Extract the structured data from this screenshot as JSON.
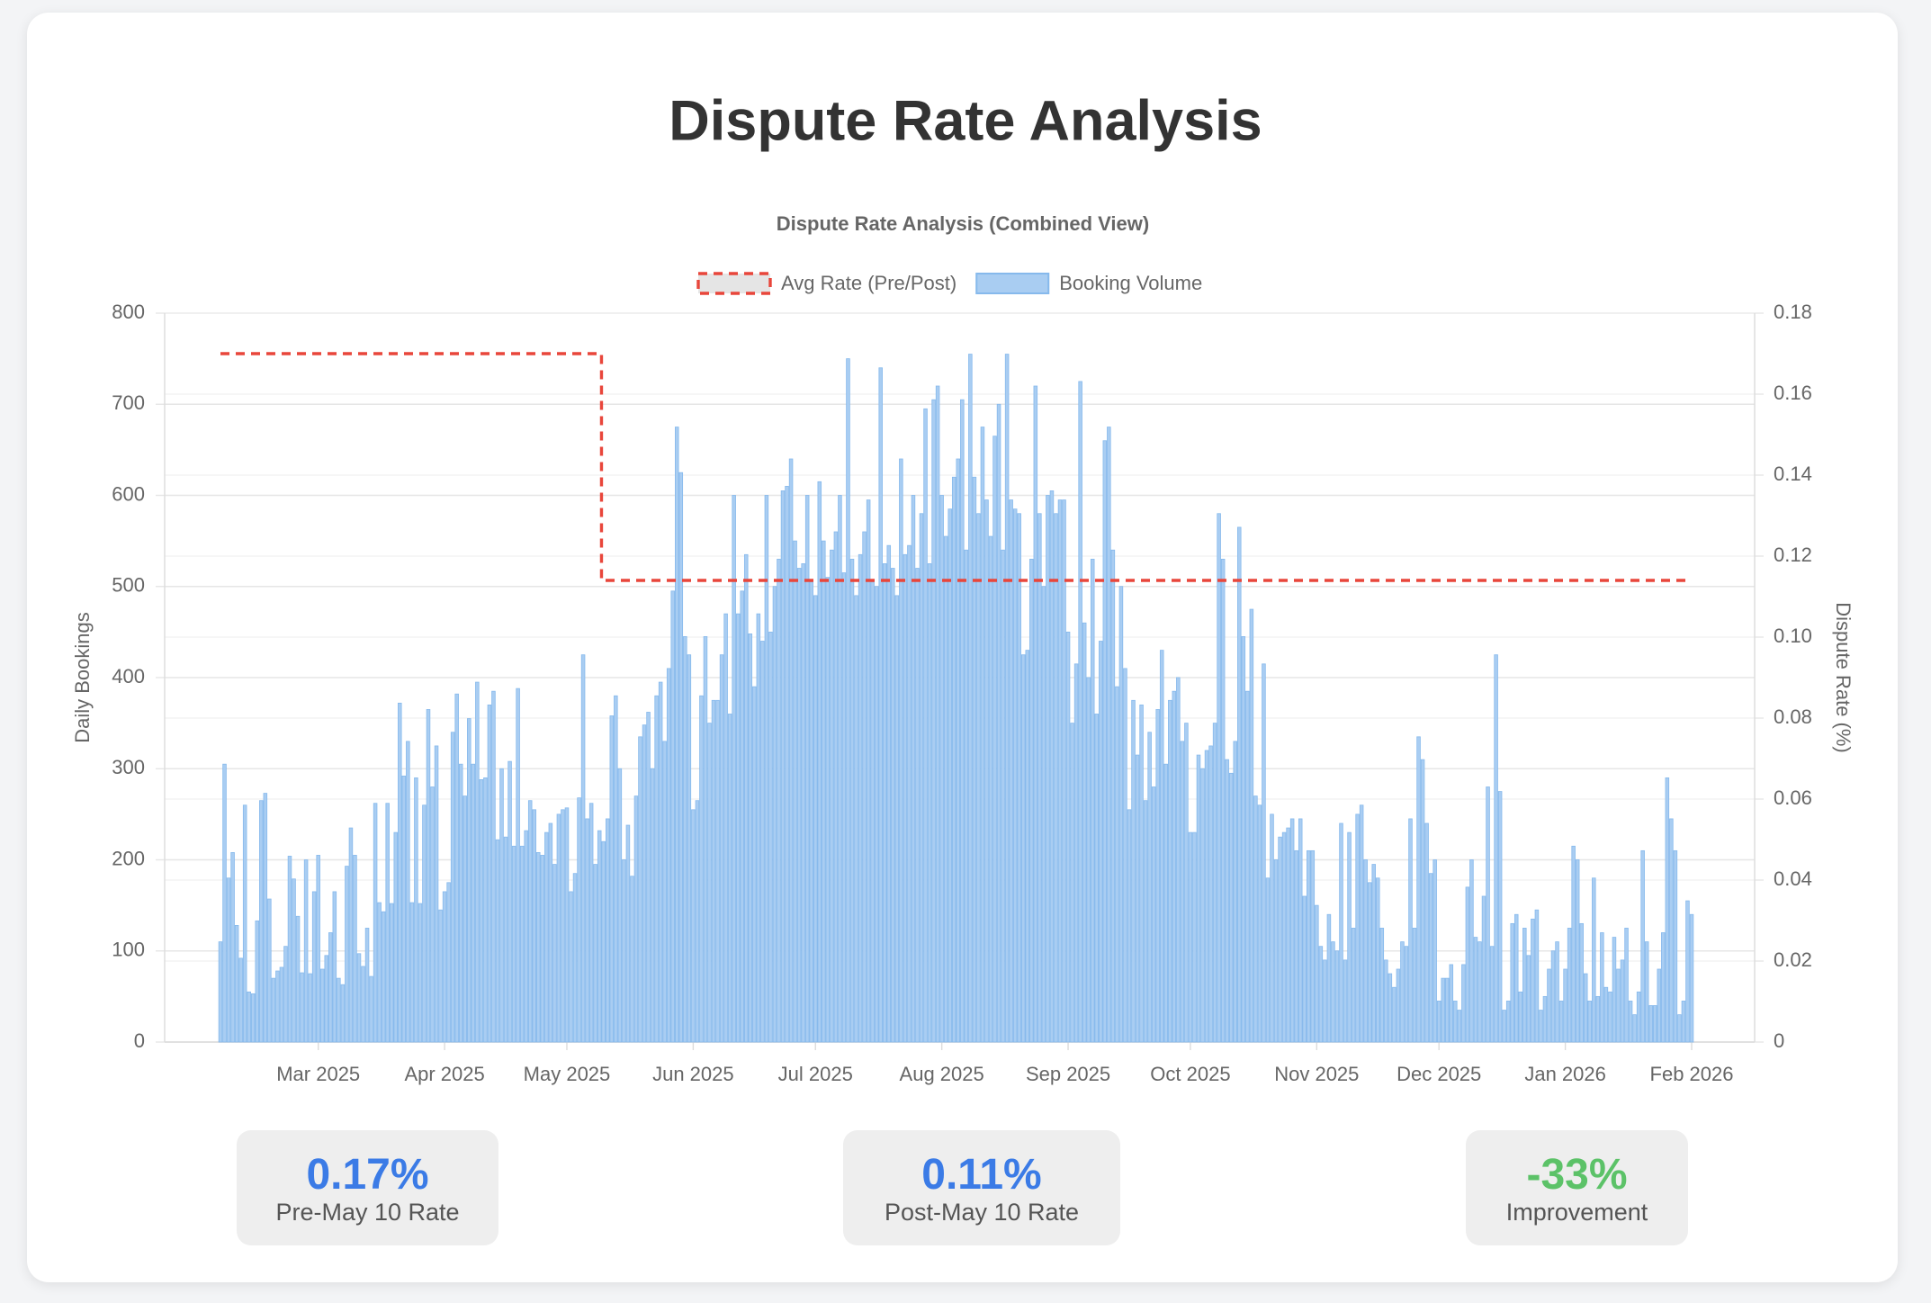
{
  "header": {
    "title": "Dispute Rate Analysis"
  },
  "chart_data": {
    "type": "bar",
    "title": "Dispute Rate Analysis (Combined View)",
    "ylabel": "Daily Bookings",
    "y2label": "Dispute Rate (%)",
    "categories": [
      null,
      null,
      null,
      null,
      null,
      null,
      null,
      null,
      null,
      null,
      null,
      null,
      null,
      null,
      null,
      null,
      null,
      null,
      null,
      null,
      null,
      null,
      null,
      null,
      "Mar 2025",
      null,
      null,
      null,
      null,
      null,
      null,
      null,
      null,
      null,
      null,
      null,
      null,
      null,
      null,
      null,
      null,
      null,
      null,
      null,
      null,
      null,
      null,
      null,
      null,
      null,
      null,
      null,
      null,
      null,
      null,
      "Apr 2025",
      null,
      null,
      null,
      null,
      null,
      null,
      null,
      null,
      null,
      null,
      null,
      null,
      null,
      null,
      null,
      null,
      null,
      null,
      null,
      null,
      null,
      null,
      null,
      null,
      null,
      null,
      null,
      null,
      null,
      "May 2025",
      null,
      null,
      null,
      null,
      null,
      null,
      null,
      null,
      null,
      null,
      null,
      null,
      null,
      null,
      null,
      null,
      null,
      null,
      null,
      null,
      null,
      null,
      null,
      null,
      null,
      null,
      null,
      null,
      null,
      null,
      "Jun 2025",
      null,
      null,
      null,
      null,
      null,
      null,
      null,
      null,
      null,
      null,
      null,
      null,
      null,
      null,
      null,
      null,
      null,
      null,
      null,
      null,
      null,
      null,
      null,
      null,
      null,
      null,
      null,
      null,
      null,
      "Jul 2025",
      null,
      null,
      null,
      null,
      null,
      null,
      null,
      null,
      null,
      null,
      null,
      null,
      null,
      null,
      null,
      null,
      null,
      null,
      null,
      null,
      null,
      null,
      null,
      null,
      null,
      null,
      null,
      null,
      null,
      null,
      "Aug 2025",
      null,
      null,
      null,
      null,
      null,
      null,
      null,
      null,
      null,
      null,
      null,
      null,
      null,
      null,
      null,
      null,
      null,
      null,
      null,
      null,
      null,
      null,
      null,
      null,
      null,
      null,
      null,
      null,
      null,
      null,
      "Sep 2025",
      null,
      null,
      null,
      null,
      null,
      null,
      null,
      null,
      null,
      null,
      null,
      null,
      null,
      null,
      null,
      null,
      null,
      null,
      null,
      null,
      null,
      null,
      null,
      null,
      null,
      null,
      null,
      null,
      null,
      "Oct 2025",
      null,
      null,
      null,
      null,
      null,
      null,
      null,
      null,
      null,
      null,
      null,
      null,
      null,
      null,
      null,
      null,
      null,
      null,
      null,
      null,
      null,
      null,
      null,
      null,
      null,
      null,
      null,
      null,
      null,
      null,
      "Nov 2025",
      null,
      null,
      null,
      null,
      null,
      null,
      null,
      null,
      null,
      null,
      null,
      null,
      null,
      null,
      null,
      null,
      null,
      null,
      null,
      null,
      null,
      null,
      null,
      null,
      null,
      null,
      null,
      null,
      null,
      "Dec 2025",
      null,
      null,
      null,
      null,
      null,
      null,
      null,
      null,
      null,
      null,
      null,
      null,
      null,
      null,
      null,
      null,
      null,
      null,
      null,
      null,
      null,
      null,
      null,
      null,
      null,
      null,
      null,
      null,
      null,
      null,
      "Jan 2026",
      null,
      null,
      null,
      null,
      null,
      null,
      null,
      null,
      null,
      null,
      null,
      null,
      null,
      null,
      null,
      null,
      null,
      null,
      null,
      null,
      null,
      null,
      null,
      null,
      null,
      null,
      null,
      null,
      null,
      null,
      "Feb 2026"
    ],
    "series": [
      {
        "name": "Avg Rate (Pre/Post)",
        "type": "line",
        "color": "#e8463b",
        "axis": "y2",
        "dashed": true,
        "stepped": true,
        "values": [
          0.17,
          0.17,
          0.17,
          0.17,
          0.17,
          0.17,
          0.17,
          0.17,
          0.17,
          0.17,
          0.17,
          0.17,
          0.17,
          0.17,
          0.17,
          0.17,
          0.17,
          0.17,
          0.17,
          0.17,
          0.17,
          0.17,
          0.17,
          0.17,
          0.17,
          0.17,
          0.17,
          0.17,
          0.17,
          0.17,
          0.17,
          0.17,
          0.17,
          0.17,
          0.17,
          0.17,
          0.17,
          0.17,
          0.17,
          0.17,
          0.17,
          0.17,
          0.17,
          0.17,
          0.17,
          0.17,
          0.17,
          0.17,
          0.17,
          0.17,
          0.17,
          0.17,
          0.17,
          0.17,
          0.17,
          0.17,
          0.17,
          0.17,
          0.17,
          0.17,
          0.17,
          0.17,
          0.17,
          0.17,
          0.17,
          0.17,
          0.17,
          0.17,
          0.17,
          0.17,
          0.17,
          0.17,
          0.17,
          0.17,
          0.17,
          0.17,
          0.17,
          0.17,
          0.17,
          0.17,
          0.17,
          0.17,
          0.17,
          0.17,
          0.17,
          0.17,
          0.17,
          0.17,
          0.17,
          0.17,
          0.17,
          0.17,
          0.17,
          0.17,
          0.114,
          0.114,
          0.114,
          0.114,
          0.114,
          0.114,
          0.114,
          0.114,
          0.114,
          0.114,
          0.114,
          0.114,
          0.114,
          0.114,
          0.114,
          0.114,
          0.114,
          0.114,
          0.114,
          0.114,
          0.114,
          0.114,
          0.114,
          0.114,
          0.114,
          0.114,
          0.114,
          0.114,
          0.114,
          0.114,
          0.114,
          0.114,
          0.114,
          0.114,
          0.114,
          0.114,
          0.114,
          0.114,
          0.114,
          0.114,
          0.114,
          0.114,
          0.114,
          0.114,
          0.114,
          0.114,
          0.114,
          0.114,
          0.114,
          0.114,
          0.114,
          0.114,
          0.114,
          0.114,
          0.114,
          0.114,
          0.114,
          0.114,
          0.114,
          0.114,
          0.114,
          0.114,
          0.114,
          0.114,
          0.114,
          0.114,
          0.114,
          0.114,
          0.114,
          0.114,
          0.114,
          0.114,
          0.114,
          0.114,
          0.114,
          0.114,
          0.114,
          0.114,
          0.114,
          0.114,
          0.114,
          0.114,
          0.114,
          0.114,
          0.114,
          0.114,
          0.114,
          0.114,
          0.114,
          0.114,
          0.114,
          0.114,
          0.114,
          0.114,
          0.114,
          0.114,
          0.114,
          0.114,
          0.114,
          0.114,
          0.114,
          0.114,
          0.114,
          0.114,
          0.114,
          0.114,
          0.114,
          0.114,
          0.114,
          0.114,
          0.114,
          0.114,
          0.114,
          0.114,
          0.114,
          0.114,
          0.114,
          0.114,
          0.114,
          0.114,
          0.114,
          0.114,
          0.114,
          0.114,
          0.114,
          0.114,
          0.114,
          0.114,
          0.114,
          0.114,
          0.114,
          0.114,
          0.114,
          0.114,
          0.114,
          0.114,
          0.114,
          0.114,
          0.114,
          0.114,
          0.114,
          0.114,
          0.114,
          0.114,
          0.114,
          0.114,
          0.114,
          0.114,
          0.114,
          0.114,
          0.114,
          0.114,
          0.114,
          0.114,
          0.114,
          0.114,
          0.114,
          0.114,
          0.114,
          0.114,
          0.114,
          0.114,
          0.114,
          0.114,
          0.114,
          0.114,
          0.114,
          0.114,
          0.114,
          0.114,
          0.114,
          0.114,
          0.114,
          0.114,
          0.114,
          0.114,
          0.114,
          0.114,
          0.114,
          0.114,
          0.114,
          0.114,
          0.114,
          0.114,
          0.114,
          0.114,
          0.114,
          0.114,
          0.114,
          0.114,
          0.114,
          0.114,
          0.114,
          0.114,
          0.114,
          0.114,
          0.114,
          0.114,
          0.114,
          0.114,
          0.114,
          0.114,
          0.114,
          0.114,
          0.114,
          0.114,
          0.114,
          0.114,
          0.114,
          0.114,
          0.114,
          0.114,
          0.114,
          0.114,
          0.114,
          0.114,
          0.114,
          0.114,
          0.114,
          0.114,
          0.114,
          0.114,
          0.114,
          0.114,
          0.114,
          0.114,
          0.114,
          0.114,
          0.114,
          0.114,
          0.114,
          0.114,
          0.114,
          0.114,
          0.114,
          0.114,
          0.114,
          0.114,
          0.114,
          0.114,
          0.114,
          0.114,
          0.114,
          0.114,
          0.114,
          0.114,
          0.114,
          0.114,
          0.114,
          0.114,
          0.114,
          0.114,
          0.114,
          0.114,
          0.114,
          0.114,
          0.114,
          0.114,
          0.114,
          0.114,
          0.114,
          0.114,
          0.114,
          0.114,
          0.114,
          0.114,
          0.114,
          0.114
        ]
      },
      {
        "name": "Booking Volume",
        "type": "bar",
        "color": "#a9cdf2",
        "edge": "#86b9ec",
        "values": [
          110,
          305,
          180,
          208,
          128,
          92,
          260,
          55,
          53,
          133,
          265,
          273,
          157,
          70,
          78,
          82,
          105,
          204,
          179,
          138,
          76,
          200,
          75,
          165,
          205,
          80,
          95,
          120,
          165,
          70,
          63,
          193,
          235,
          205,
          97,
          83,
          125,
          72,
          262,
          153,
          143,
          262,
          152,
          230,
          372,
          292,
          330,
          153,
          290,
          152,
          260,
          365,
          280,
          325,
          145,
          165,
          175,
          340,
          382,
          305,
          270,
          355,
          305,
          395,
          288,
          290,
          370,
          385,
          222,
          300,
          225,
          308,
          215,
          388,
          215,
          232,
          265,
          255,
          208,
          205,
          230,
          240,
          195,
          250,
          255,
          257,
          165,
          185,
          268,
          425,
          245,
          262,
          195,
          232,
          220,
          245,
          358,
          380,
          300,
          200,
          238,
          182,
          270,
          335,
          348,
          362,
          300,
          380,
          395,
          330,
          410,
          495,
          675,
          625,
          445,
          425,
          255,
          265,
          380,
          445,
          350,
          375,
          375,
          425,
          470,
          360,
          600,
          470,
          495,
          535,
          448,
          390,
          470,
          440,
          600,
          450,
          500,
          530,
          605,
          610,
          640,
          550,
          520,
          525,
          600,
          505,
          490,
          615,
          550,
          510,
          540,
          560,
          600,
          515,
          750,
          530,
          490,
          535,
          560,
          595,
          505,
          500,
          740,
          525,
          545,
          520,
          490,
          640,
          535,
          545,
          600,
          520,
          580,
          695,
          525,
          705,
          720,
          600,
          555,
          585,
          620,
          640,
          705,
          540,
          755,
          620,
          580,
          675,
          595,
          555,
          665,
          700,
          540,
          755,
          595,
          585,
          580,
          425,
          430,
          530,
          720,
          580,
          500,
          600,
          605,
          580,
          595,
          595,
          450,
          350,
          415,
          725,
          460,
          400,
          530,
          360,
          440,
          660,
          675,
          540,
          390,
          500,
          410,
          255,
          375,
          315,
          370,
          265,
          340,
          280,
          365,
          430,
          305,
          375,
          385,
          400,
          330,
          350,
          230,
          230,
          315,
          300,
          320,
          325,
          350,
          580,
          530,
          310,
          295,
          330,
          565,
          445,
          385,
          475,
          270,
          260,
          415,
          180,
          250,
          200,
          225,
          230,
          235,
          245,
          210,
          245,
          160,
          210,
          210,
          150,
          105,
          90,
          140,
          110,
          100,
          240,
          90,
          230,
          125,
          250,
          260,
          200,
          175,
          195,
          180,
          125,
          90,
          75,
          60,
          80,
          110,
          105,
          245,
          125,
          335,
          310,
          240,
          185,
          200,
          45,
          70,
          70,
          85,
          45,
          35,
          85,
          170,
          200,
          115,
          110,
          160,
          280,
          105,
          425,
          275,
          35,
          45,
          130,
          140,
          55,
          125,
          95,
          135,
          145,
          35,
          50,
          80,
          100,
          110,
          45,
          80,
          125,
          215,
          200,
          130,
          75,
          45,
          180,
          50,
          120,
          60,
          55,
          115,
          80,
          90,
          125,
          45,
          30,
          55,
          210,
          110,
          40,
          40,
          80,
          120,
          290,
          245,
          210,
          30,
          45,
          155,
          140
        ]
      }
    ],
    "ylim": [
      0,
      800
    ],
    "yticks": [
      0,
      100,
      200,
      300,
      400,
      500,
      600,
      700,
      800
    ],
    "y2lim": [
      0,
      0.18
    ],
    "y2ticks": [
      0,
      0.02,
      0.04,
      0.06,
      0.08,
      {
        "value": 0.1,
        "label": "0.10"
      },
      0.12,
      0.14,
      0.16,
      0.18
    ],
    "grid": true
  },
  "stats": [
    {
      "value": "0.17%",
      "label": "Pre-May 10 Rate",
      "color": "#3b7be6"
    },
    {
      "value": "0.11%",
      "label": "Post-May 10 Rate",
      "color": "#3b7be6"
    },
    {
      "value": "-33%",
      "label": "Improvement",
      "color": "#5cc268"
    }
  ]
}
